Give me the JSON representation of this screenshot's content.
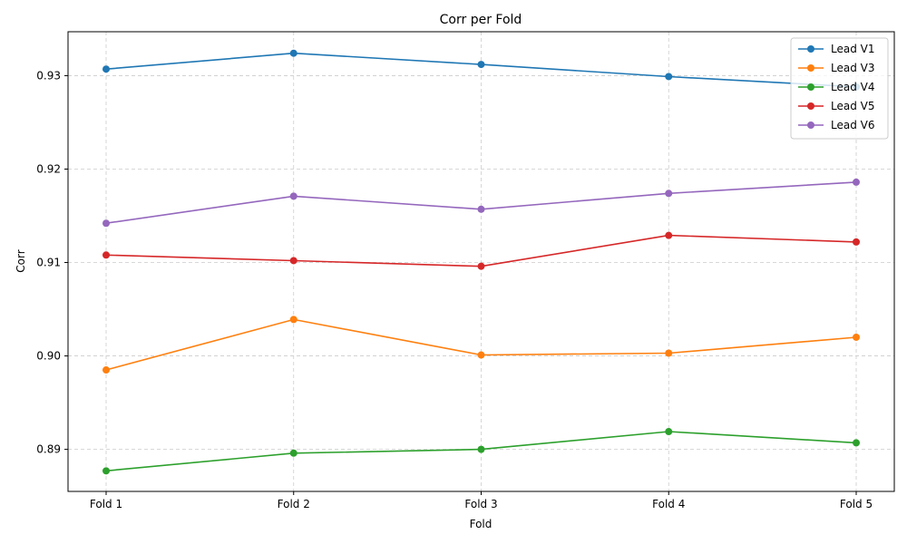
{
  "chart_data": {
    "type": "line",
    "title": "Corr per Fold",
    "xlabel": "Fold",
    "ylabel": "Corr",
    "categories": [
      "Fold 1",
      "Fold 2",
      "Fold 3",
      "Fold 4",
      "Fold 5"
    ],
    "ylim": [
      0.8855,
      0.9347
    ],
    "yticks": [
      0.89,
      0.9,
      0.91,
      0.92,
      0.93
    ],
    "ytick_labels": [
      "0.89",
      "0.90",
      "0.91",
      "0.92",
      "0.93"
    ],
    "grid": true,
    "legend_position": "top-right",
    "series": [
      {
        "name": "Lead V1",
        "color": "#1f77b4",
        "values": [
          0.9307,
          0.9324,
          0.9312,
          0.9299,
          0.9288
        ]
      },
      {
        "name": "Lead V3",
        "color": "#ff7f0e",
        "values": [
          0.8985,
          0.9039,
          0.9001,
          0.9003,
          0.902
        ]
      },
      {
        "name": "Lead V4",
        "color": "#2ca02c",
        "values": [
          0.8877,
          0.8896,
          0.89,
          0.8919,
          0.8907
        ]
      },
      {
        "name": "Lead V5",
        "color": "#d62728",
        "values": [
          0.9108,
          0.9102,
          0.9096,
          0.9129,
          0.9122
        ]
      },
      {
        "name": "Lead V6",
        "color": "#9467bd",
        "values": [
          0.9142,
          0.9171,
          0.9157,
          0.9174,
          0.9186
        ]
      }
    ]
  }
}
